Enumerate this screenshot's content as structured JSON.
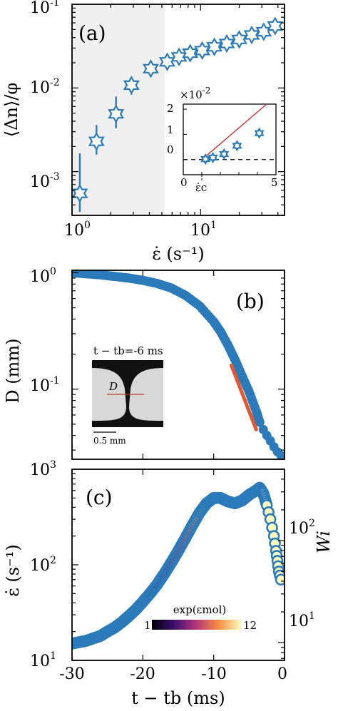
{
  "colors": {
    "marker": "#2b7bba",
    "fit": "#e2572f",
    "shade": "#f0f0f0",
    "axis": "#000000"
  },
  "figure": {
    "panels": [
      {
        "label": "(a)",
        "xlabel": "ε̇ (s⁻¹)",
        "ylabel": "⟨Δn⟩/φ",
        "x_tick_labels": [
          "10",
          "10",
          "10"
        ],
        "x_tick_exponents": [
          "0",
          "1",
          ""
        ],
        "y_tick_labels": [
          "10",
          "10",
          "10"
        ],
        "y_tick_exponents": [
          "-3",
          "-2",
          "-1"
        ],
        "inset": {
          "multiplier_label": "×10",
          "multiplier_exponent": "-2",
          "x_tick_labels": [
            "0",
            "5"
          ],
          "y_tick_labels": [
            "0",
            "1",
            "2"
          ],
          "critical_label": "ε̇c"
        }
      },
      {
        "label": "(b)",
        "ylabel": "D (mm)",
        "y_tick_labels": [
          "10",
          "10"
        ],
        "y_tick_exponents": [
          "0",
          "-1"
        ],
        "inset": {
          "time_label": "t − tb=-6 ms",
          "d_label": "D",
          "scale_label": "0.5 mm"
        }
      },
      {
        "label": "(c)",
        "xlabel": "t − tb (ms)",
        "ylabel": "ε̇ (s⁻¹)",
        "right_ylabel": "Wi",
        "x_tick_labels": [
          "-30",
          "-20",
          "-10",
          "0"
        ],
        "y_tick_labels": [
          "10",
          "10",
          "10"
        ],
        "y_tick_exponents": [
          "1",
          "2",
          "3"
        ],
        "right_tick_labels": [
          "10",
          "10"
        ],
        "right_tick_exponents": [
          "1",
          "2"
        ],
        "colorbar": {
          "title": "exp(εmol)",
          "min_label": "1",
          "max_label": "12"
        }
      }
    ]
  },
  "chart_data": [
    {
      "type": "scatter",
      "panel": "(a)",
      "xlabel": "ε̇ (s⁻¹)",
      "ylabel": "⟨Δn⟩/φ",
      "xscale": "log",
      "yscale": "log",
      "xlim": [
        1,
        45
      ],
      "ylim": [
        0.0003,
        0.1
      ],
      "shaded_region_x": [
        1,
        5
      ],
      "series": [
        {
          "marker": "hexagram",
          "x": [
            1.15,
            1.55,
            2.2,
            2.9,
            4.1,
            5.5,
            6.8,
            8.3,
            10.3,
            12.8,
            16,
            20,
            25,
            31,
            38
          ],
          "y": [
            0.00055,
            0.0023,
            0.0049,
            0.0108,
            0.017,
            0.0205,
            0.0235,
            0.026,
            0.028,
            0.031,
            0.034,
            0.038,
            0.043,
            0.047,
            0.055
          ],
          "y_err_low": [
            0.00022,
            0.0007,
            0.0016,
            0.0025,
            0.002,
            0.001,
            0.001,
            0.001,
            0.001,
            0.001,
            0.001,
            0.001,
            0.001,
            0.001,
            0.001
          ],
          "y_err_high": [
            0.0011,
            0.0013,
            0.003,
            0.002,
            0.0025,
            0.001,
            0.001,
            0.001,
            0.001,
            0.001,
            0.001,
            0.001,
            0.001,
            0.001,
            0.001
          ]
        }
      ],
      "inset": {
        "type": "scatter",
        "xlim": [
          0,
          5
        ],
        "ylim": [
          -0.6,
          2.2
        ],
        "y_multiplier": "1e-2",
        "points": {
          "x": [
            1.2,
            1.6,
            2.2,
            2.9,
            4.1
          ],
          "y": [
            0.02,
            0.08,
            0.22,
            0.55,
            1.05
          ]
        },
        "fit_line": {
          "x": [
            1.0,
            4.5
          ],
          "y": [
            0.0,
            2.2
          ]
        },
        "dashed_zero": true,
        "critical_x": 1.0
      }
    },
    {
      "type": "scatter",
      "panel": "(b)",
      "ylabel": "D (mm)",
      "yscale": "log",
      "xlim": [
        -30,
        0
      ],
      "ylim": [
        0.025,
        1.05
      ],
      "series": [
        {
          "name": "D",
          "t": [
            -30,
            -28,
            -26,
            -24,
            -22,
            -20,
            -18,
            -16,
            -14,
            -12,
            -10,
            -9,
            -8,
            -7,
            -6,
            -5,
            -4,
            -3.5,
            -3.0,
            -2.5,
            -2.0,
            -1.5,
            -1.0,
            -0.5
          ],
          "D": [
            1.0,
            0.98,
            0.96,
            0.93,
            0.9,
            0.86,
            0.81,
            0.74,
            0.64,
            0.52,
            0.38,
            0.31,
            0.24,
            0.18,
            0.13,
            0.095,
            0.065,
            0.052,
            0.045,
            0.04,
            0.036,
            0.032,
            0.029,
            0.027
          ]
        }
      ],
      "fit": {
        "t": [
          -7.5,
          -4.0
        ],
        "D": [
          0.16,
          0.045
        ]
      }
    },
    {
      "type": "scatter",
      "panel": "(c)",
      "xlabel": "t − tb (ms)",
      "ylabel": "ε̇ (s⁻¹)",
      "xscale": "linear",
      "yscale": "log",
      "xlim": [
        -30,
        0
      ],
      "ylim": [
        10,
        1000
      ],
      "right_axis": {
        "label": "Wi",
        "ylim": [
          6.7,
          500
        ]
      },
      "colorbar": {
        "label": "exp(εmol)",
        "range": [
          1,
          12
        ]
      },
      "series": [
        {
          "t": [
            -30,
            -29,
            -28,
            -27,
            -26,
            -25,
            -24,
            -23,
            -22,
            -21,
            -20,
            -19,
            -18,
            -17,
            -16,
            -15,
            -14,
            -13,
            -12,
            -11,
            -10,
            -9,
            -8,
            -7,
            -6,
            -5,
            -4,
            -3.5,
            -3,
            -2.5,
            -2,
            -1.5,
            -1.2,
            -1.0,
            -0.8,
            -0.5
          ],
          "strain_rate": [
            15,
            15.5,
            16,
            17,
            18,
            20,
            22,
            25,
            29,
            34,
            41,
            50,
            62,
            80,
            105,
            140,
            190,
            260,
            350,
            440,
            500,
            500,
            460,
            440,
            470,
            540,
            600,
            640,
            560,
            420,
            300,
            200,
            140,
            110,
            85,
            70
          ],
          "color_value": [
            1,
            1,
            1,
            1.1,
            1.2,
            1.3,
            1.5,
            1.7,
            2,
            2.3,
            2.7,
            3.2,
            3.8,
            4.5,
            5.3,
            6.2,
            7.2,
            8.2,
            9.2,
            10,
            10.7,
            11.2,
            11.5,
            11.7,
            11.8,
            11.9,
            12,
            12,
            12,
            12,
            12,
            12,
            12,
            12,
            12,
            12
          ]
        }
      ]
    }
  ]
}
